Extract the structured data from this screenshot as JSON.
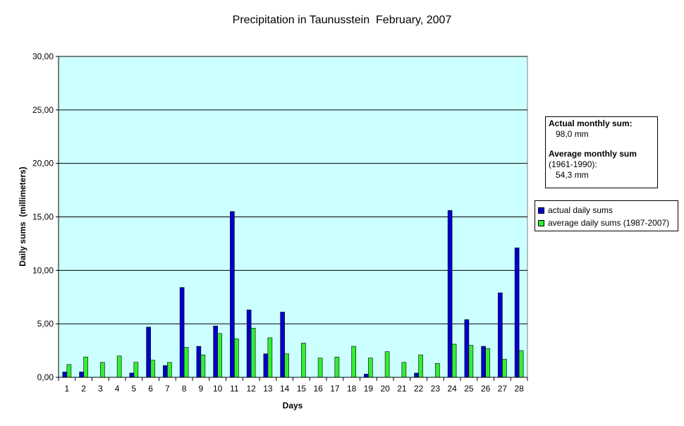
{
  "chart_data": {
    "type": "bar",
    "title": "Precipitation in Taunusstein  February, 2007",
    "xlabel": "Days",
    "ylabel": "Daily sums  (millimeters)",
    "ylim": [
      0,
      30
    ],
    "yticks": [
      "0,00",
      "5,00",
      "10,00",
      "15,00",
      "20,00",
      "25,00",
      "30,00"
    ],
    "grid": true,
    "plot_background": "#ccffff",
    "legend_position": "right",
    "categories": [
      "1",
      "2",
      "3",
      "4",
      "5",
      "6",
      "7",
      "8",
      "9",
      "10",
      "11",
      "12",
      "13",
      "14",
      "15",
      "16",
      "17",
      "18",
      "19",
      "20",
      "21",
      "22",
      "23",
      "24",
      "25",
      "26",
      "27",
      "28"
    ],
    "series": [
      {
        "name": "actual daily sums",
        "color": "#0000cc",
        "values": [
          0.5,
          0.5,
          0,
          0,
          0.4,
          4.7,
          1.1,
          8.4,
          2.9,
          4.8,
          15.5,
          6.3,
          2.2,
          6.1,
          0,
          0,
          0,
          0,
          0.3,
          0,
          0,
          0.4,
          0,
          15.6,
          5.4,
          2.9,
          7.9,
          12.1
        ]
      },
      {
        "name": "average daily sums (1987-2007)",
        "color": "#33ee33",
        "values": [
          1.2,
          1.9,
          1.4,
          2.0,
          1.4,
          1.6,
          1.4,
          2.8,
          2.1,
          4.1,
          3.6,
          4.6,
          3.7,
          2.2,
          3.2,
          1.8,
          1.9,
          2.9,
          1.8,
          2.4,
          1.4,
          2.1,
          1.3,
          3.1,
          3.0,
          2.7,
          1.7,
          2.5
        ]
      }
    ]
  },
  "info": {
    "line1": "Actual monthly sum:",
    "line2": "98,0 mm",
    "line3": "Average monthly sum",
    "line4": "(1961-1990):",
    "line5": "54,3 mm"
  }
}
